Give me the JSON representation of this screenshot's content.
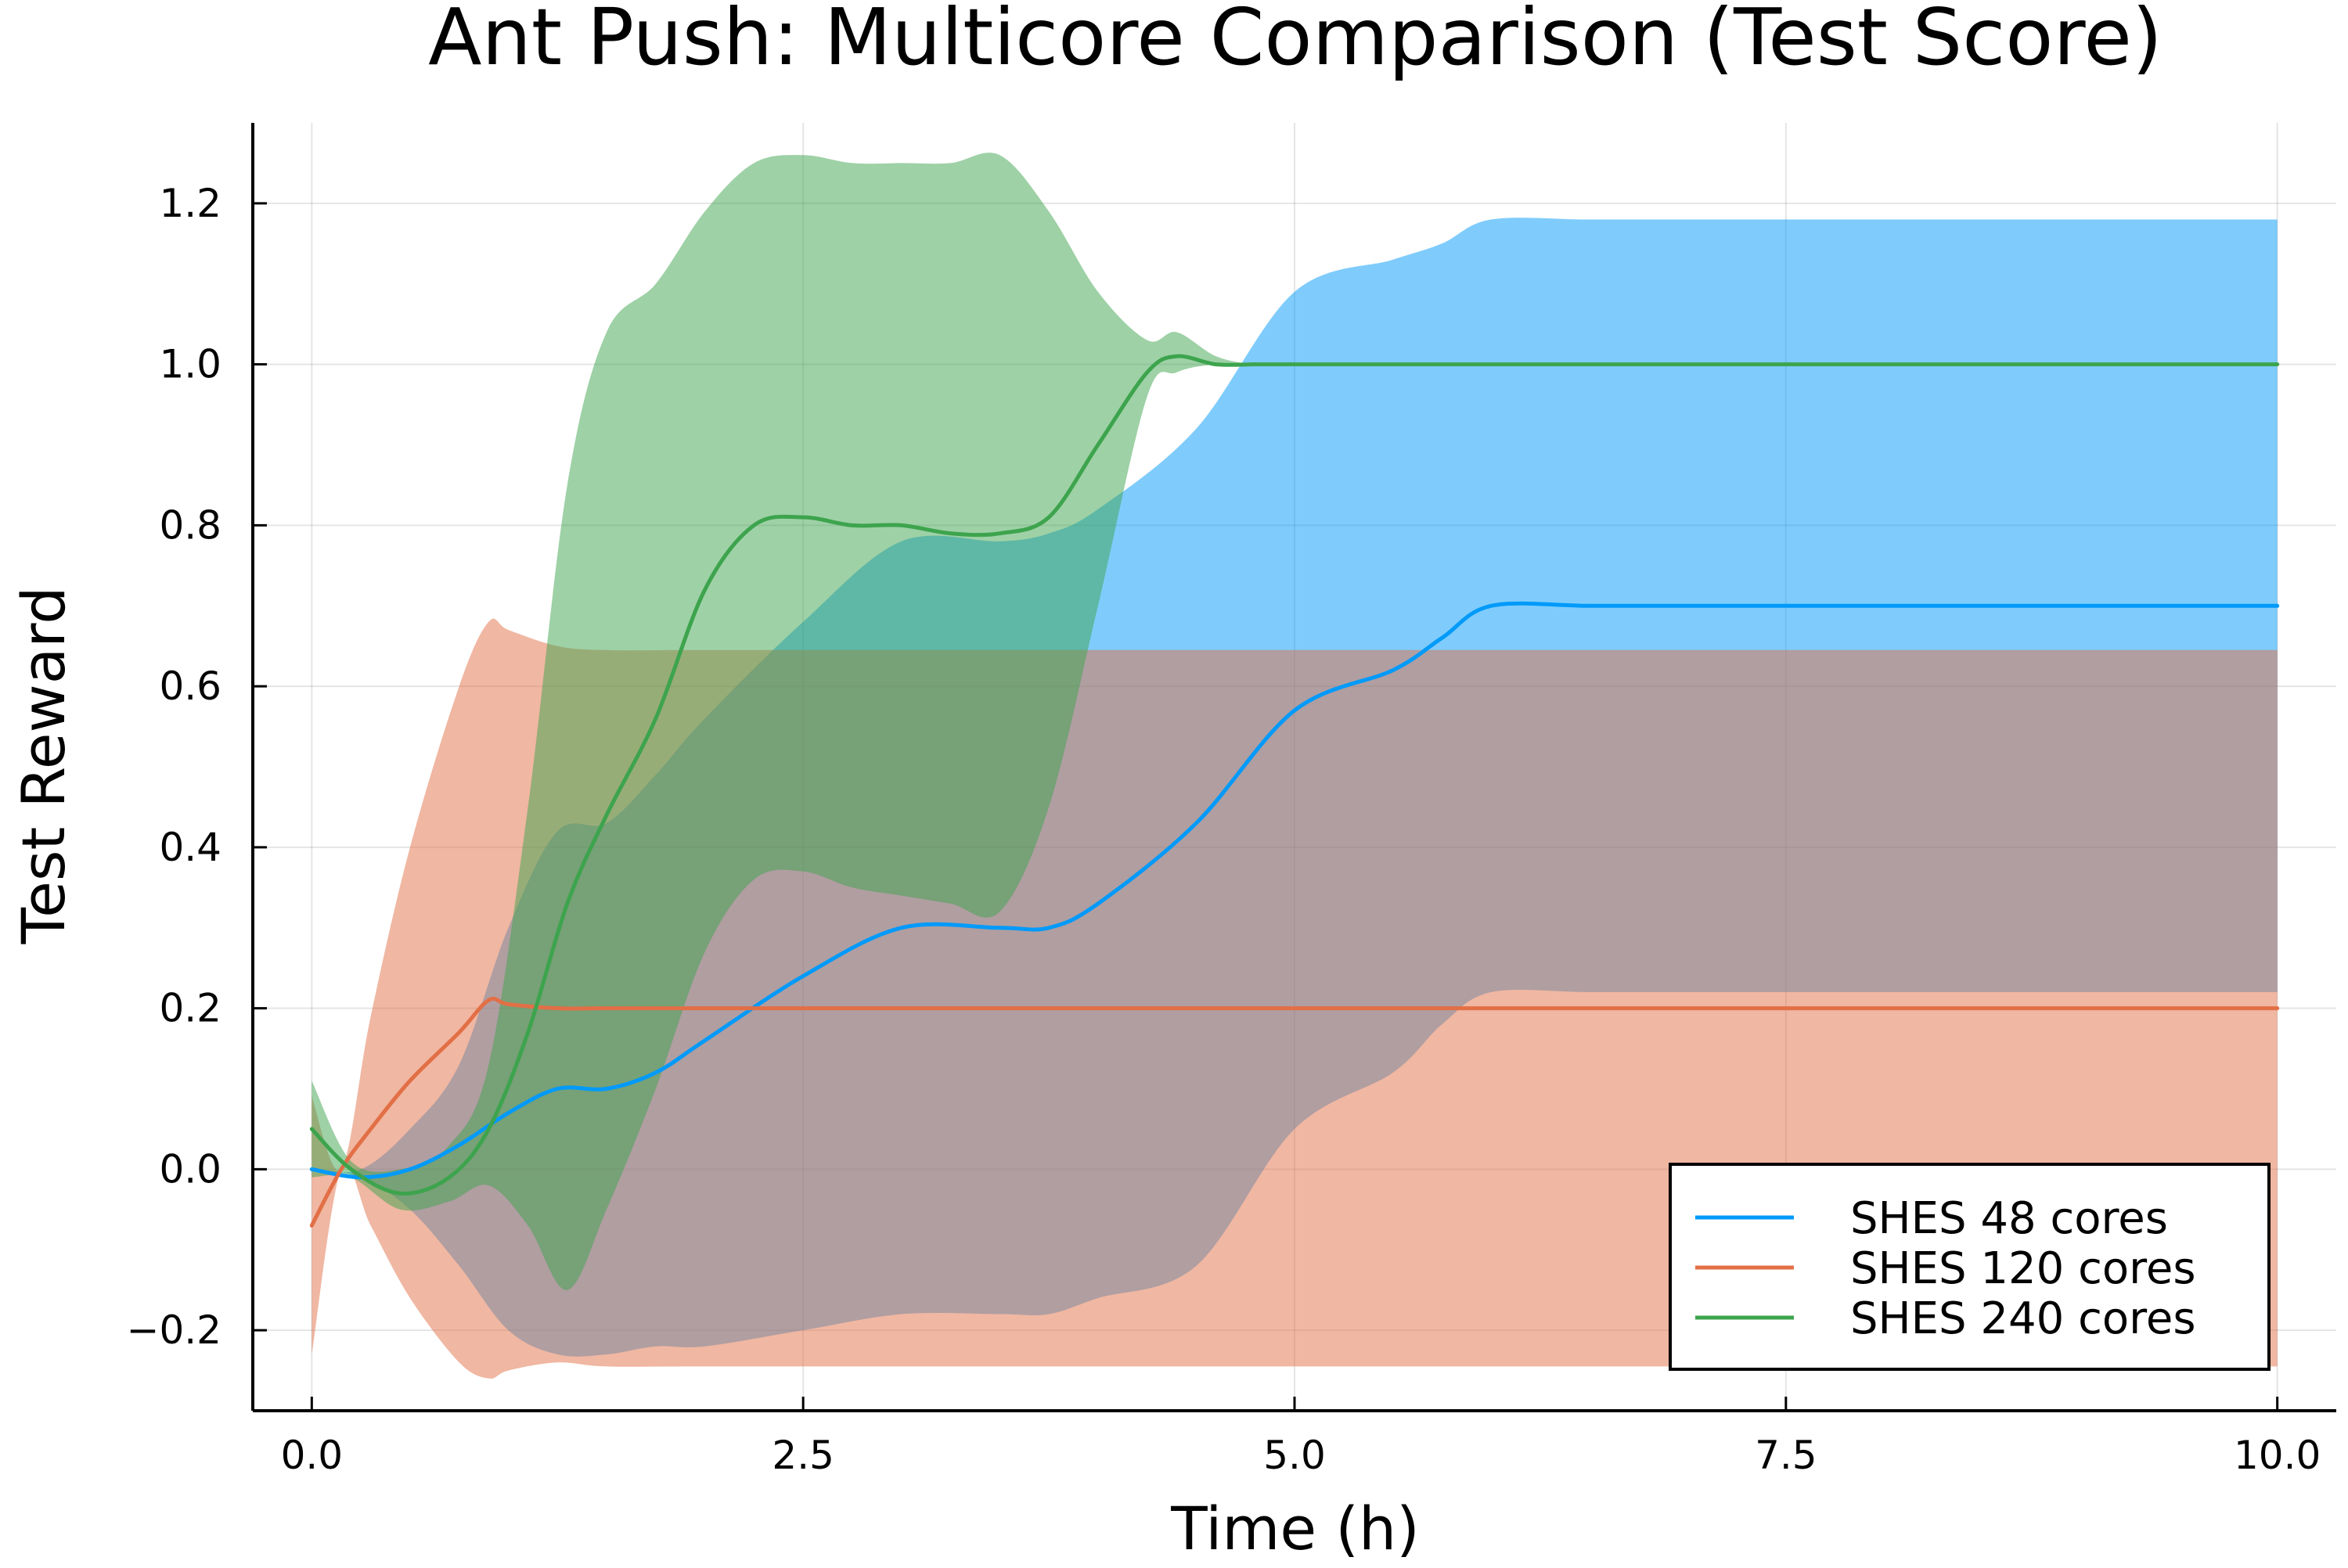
{
  "chart_data": {
    "type": "line",
    "title": "Ant Push: Multicore Comparison (Test Score)",
    "xlabel": "Time (h)",
    "ylabel": "Test Reward",
    "xlim": [
      -0.3,
      10.3
    ],
    "ylim": [
      -0.3,
      1.3
    ],
    "x_ticks": [
      0.0,
      2.5,
      5.0,
      7.5,
      10.0
    ],
    "x_tick_labels": [
      "0.0",
      "2.5",
      "5.0",
      "7.5",
      "10.0"
    ],
    "y_ticks": [
      -0.2,
      0.0,
      0.2,
      0.4,
      0.6,
      0.8,
      1.0,
      1.2
    ],
    "y_tick_labels": [
      "−0.2",
      "0.0",
      "0.2",
      "0.4",
      "0.6",
      "0.8",
      "1.0",
      "1.2"
    ],
    "grid": true,
    "legend_position": "bottom-right",
    "series": [
      {
        "name": "SHES 48 cores",
        "color": "#009AFA",
        "band_opacity": 0.5,
        "x": [
          0.0,
          0.25,
          0.5,
          0.75,
          1.0,
          1.25,
          1.5,
          1.75,
          2.0,
          2.5,
          3.0,
          3.5,
          3.75,
          4.0,
          4.5,
          5.0,
          5.5,
          5.75,
          6.0,
          6.5,
          7.0,
          8.0,
          9.0,
          10.0
        ],
        "mean": [
          0.0,
          -0.01,
          0.0,
          0.03,
          0.07,
          0.1,
          0.1,
          0.12,
          0.16,
          0.24,
          0.3,
          0.3,
          0.3,
          0.33,
          0.43,
          0.57,
          0.62,
          0.66,
          0.7,
          0.7,
          0.7,
          0.7,
          0.7,
          0.7
        ],
        "lower": [
          0.0,
          -0.01,
          -0.05,
          -0.12,
          -0.2,
          -0.23,
          -0.23,
          -0.22,
          -0.22,
          -0.2,
          -0.18,
          -0.18,
          -0.18,
          -0.16,
          -0.12,
          0.05,
          0.12,
          0.18,
          0.22,
          0.22,
          0.22,
          0.22,
          0.22,
          0.22
        ],
        "upper": [
          0.0,
          0.0,
          0.05,
          0.13,
          0.3,
          0.42,
          0.43,
          0.49,
          0.56,
          0.68,
          0.78,
          0.78,
          0.79,
          0.82,
          0.92,
          1.09,
          1.13,
          1.15,
          1.18,
          1.18,
          1.18,
          1.18,
          1.18,
          1.18
        ]
      },
      {
        "name": "SHES 120 cores",
        "color": "#E26F46",
        "band_opacity": 0.5,
        "x": [
          0.0,
          0.15,
          0.3,
          0.5,
          0.75,
          0.9,
          1.0,
          1.25,
          1.5,
          2.0,
          3.0,
          4.0,
          5.0,
          6.0,
          7.0,
          8.0,
          9.0,
          10.0
        ],
        "mean": [
          -0.07,
          0.0,
          0.05,
          0.11,
          0.17,
          0.21,
          0.205,
          0.2,
          0.2,
          0.2,
          0.2,
          0.2,
          0.2,
          0.2,
          0.2,
          0.2,
          0.2,
          0.2
        ],
        "lower": [
          -0.23,
          0.0,
          -0.07,
          -0.16,
          -0.24,
          -0.26,
          -0.25,
          -0.24,
          -0.245,
          -0.245,
          -0.245,
          -0.245,
          -0.245,
          -0.245,
          -0.245,
          -0.245,
          -0.245,
          -0.245
        ],
        "upper": [
          0.09,
          0.0,
          0.19,
          0.4,
          0.6,
          0.68,
          0.67,
          0.65,
          0.645,
          0.645,
          0.645,
          0.645,
          0.645,
          0.645,
          0.645,
          0.645,
          0.645,
          0.645
        ]
      },
      {
        "name": "SHES 240 cores",
        "color": "#3DA44D",
        "band_opacity": 0.5,
        "x": [
          0.0,
          0.2,
          0.45,
          0.7,
          0.9,
          1.1,
          1.3,
          1.5,
          1.75,
          2.0,
          2.25,
          2.5,
          2.75,
          3.0,
          3.25,
          3.5,
          3.75,
          4.0,
          4.25,
          4.4,
          4.6,
          4.8,
          5.0,
          6.0,
          7.0,
          8.0,
          9.0,
          10.0
        ],
        "mean": [
          0.05,
          0.0,
          -0.03,
          -0.01,
          0.05,
          0.17,
          0.33,
          0.44,
          0.56,
          0.72,
          0.8,
          0.81,
          0.8,
          0.8,
          0.79,
          0.79,
          0.81,
          0.9,
          0.99,
          1.01,
          1.0,
          1.0,
          1.0,
          1.0,
          1.0,
          1.0,
          1.0,
          1.0
        ],
        "lower": [
          -0.01,
          -0.01,
          -0.05,
          -0.04,
          -0.02,
          -0.07,
          -0.15,
          -0.05,
          0.1,
          0.27,
          0.36,
          0.37,
          0.35,
          0.34,
          0.33,
          0.32,
          0.45,
          0.7,
          0.96,
          0.99,
          1.0,
          1.0,
          1.0,
          1.0,
          1.0,
          1.0,
          1.0,
          1.0
        ],
        "upper": [
          0.11,
          0.01,
          0.0,
          0.03,
          0.13,
          0.45,
          0.85,
          1.04,
          1.1,
          1.19,
          1.25,
          1.26,
          1.25,
          1.25,
          1.25,
          1.26,
          1.19,
          1.09,
          1.03,
          1.04,
          1.01,
          1.0,
          1.0,
          1.0,
          1.0,
          1.0,
          1.0,
          1.0
        ]
      }
    ]
  }
}
